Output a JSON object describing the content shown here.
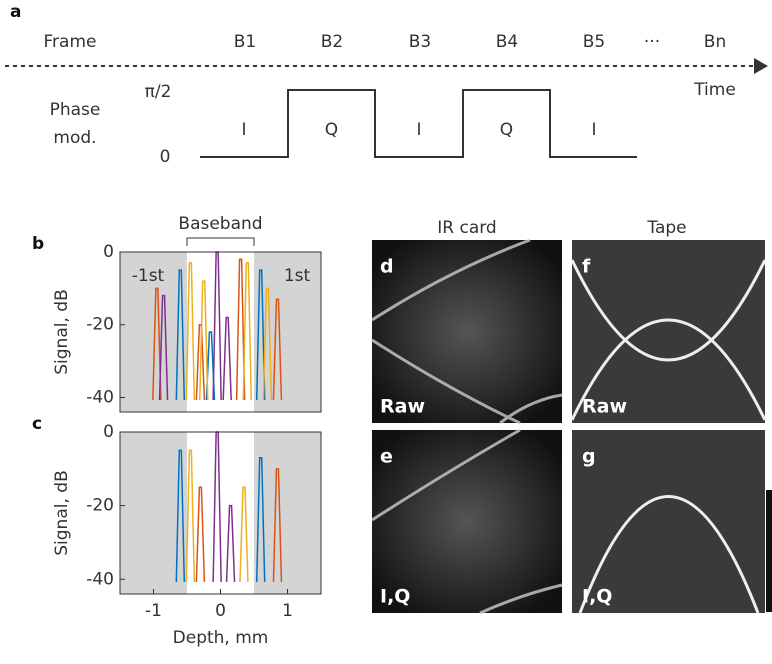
{
  "panel_a": {
    "label": "a",
    "row_label": "Frame",
    "frames": [
      "B1",
      "B2",
      "B3",
      "B4",
      "B5",
      "···",
      "Bn"
    ],
    "axis_label": "Time",
    "mod_label": [
      "Phase",
      "mod."
    ],
    "levels": [
      "π/2",
      "0"
    ],
    "segments": [
      "I",
      "Q",
      "I",
      "Q",
      "I"
    ]
  },
  "chart_data": [
    {
      "type": "spectrum",
      "label": "b",
      "ylabel": "Signal, dB",
      "annotations": {
        "baseband": "Baseband",
        "minus_first": "-1st",
        "first": "1st"
      },
      "baseband_range": [
        -0.5,
        0.5
      ],
      "xlim": [
        -1.5,
        1.5
      ],
      "ylim": [
        -44,
        0
      ],
      "yticks": [
        0,
        -20,
        -40
      ],
      "series": [
        {
          "color": "#0072bd",
          "x": [
            -0.6,
            0.6,
            -0.15
          ],
          "values": [
            -5,
            -5,
            -22
          ]
        },
        {
          "color": "#d95319",
          "x": [
            -0.95,
            0.3,
            0.85,
            -0.3
          ],
          "values": [
            -10,
            -2,
            -13,
            -20
          ]
        },
        {
          "color": "#edb120",
          "x": [
            -0.45,
            -0.25,
            0.4,
            0.7
          ],
          "values": [
            -3,
            -8,
            -3,
            -10
          ]
        },
        {
          "color": "#7e2f8e",
          "x": [
            -0.05,
            -0.85,
            0.1
          ],
          "values": [
            0,
            -12,
            -18
          ]
        }
      ]
    },
    {
      "type": "spectrum",
      "label": "c",
      "ylabel": "Signal, dB",
      "xlabel": "Depth, mm",
      "baseband_range": [
        -0.5,
        0.5
      ],
      "xlim": [
        -1.5,
        1.5
      ],
      "ylim": [
        -44,
        0
      ],
      "yticks": [
        0,
        -20,
        -40
      ],
      "xticks": [
        -1,
        0,
        1
      ],
      "series": [
        {
          "color": "#0072bd",
          "x": [
            -0.6,
            0.6
          ],
          "values": [
            -5,
            -7
          ]
        },
        {
          "color": "#d95319",
          "x": [
            -0.3,
            0.85
          ],
          "values": [
            -15,
            -10
          ]
        },
        {
          "color": "#edb120",
          "x": [
            -0.45,
            0.35
          ],
          "values": [
            -5,
            -15
          ]
        },
        {
          "color": "#7e2f8e",
          "x": [
            -0.05,
            0.15
          ],
          "values": [
            0,
            -20
          ]
        }
      ]
    }
  ],
  "images": {
    "column_titles": [
      "IR card",
      "Tape"
    ],
    "panels": [
      {
        "label": "d",
        "caption": "Raw"
      },
      {
        "label": "e",
        "caption": "I,Q"
      },
      {
        "label": "f",
        "caption": "Raw"
      },
      {
        "label": "g",
        "caption": "I,Q"
      }
    ]
  }
}
